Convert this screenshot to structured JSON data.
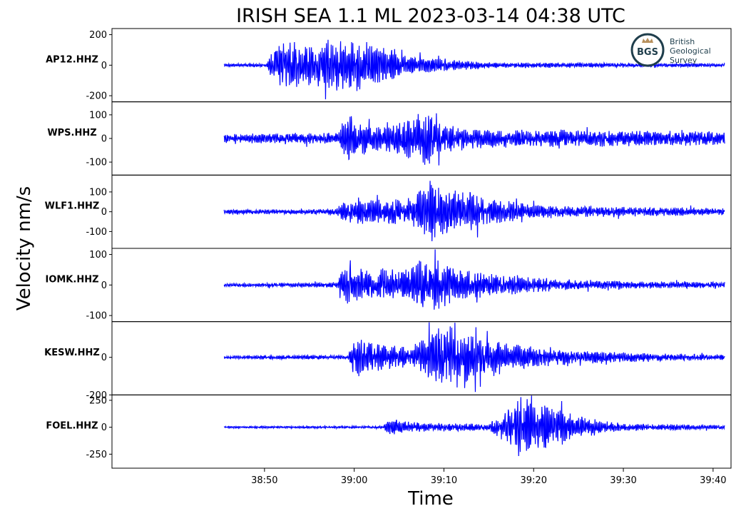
{
  "chart_data": {
    "type": "line",
    "title": "IRISH SEA 1.1 ML   2023-03-14 04:38 UTC",
    "xlabel": "Time",
    "ylabel": "Velocity nm/s",
    "x_tick_labels": [
      "38:50",
      "39:00",
      "39:10",
      "39:20",
      "39:30",
      "39:40"
    ],
    "x_tick_seconds": [
      50,
      60,
      70,
      80,
      90,
      100
    ],
    "xlim_seconds": [
      33.0,
      102.0
    ],
    "trace_start_seconds": 45.5,
    "trace_end_seconds": 107.0,
    "line_color": "#0000ff",
    "series": [
      {
        "name": "AP12.HHZ",
        "ylim": [
          -240,
          240
        ],
        "yticks": [
          200,
          0,
          -200
        ],
        "ytick_labels": [
          "200",
          "0",
          "-200"
        ],
        "onsets_seconds": [
          50.5,
          56.5
        ],
        "envelope": [
          [
            45.5,
            10
          ],
          [
            50.2,
            12
          ],
          [
            50.8,
            90
          ],
          [
            52,
            180
          ],
          [
            54,
            150
          ],
          [
            57,
            170
          ],
          [
            60,
            180
          ],
          [
            63,
            130
          ],
          [
            66,
            60
          ],
          [
            75,
            20
          ],
          [
            90,
            14
          ],
          [
            107,
            12
          ]
        ]
      },
      {
        "name": "WPS.HHZ",
        "ylim": [
          -155,
          155
        ],
        "yticks": [
          100,
          0,
          -100
        ],
        "ytick_labels": [
          "100",
          "0",
          "-100"
        ],
        "onsets_seconds": [
          58.5,
          66.5
        ],
        "envelope": [
          [
            45.5,
            20
          ],
          [
            58.2,
            25
          ],
          [
            59.0,
            125
          ],
          [
            61,
            70
          ],
          [
            63,
            50
          ],
          [
            66.5,
            90
          ],
          [
            68,
            130
          ],
          [
            70,
            60
          ],
          [
            75,
            40
          ],
          [
            107,
            28
          ]
        ]
      },
      {
        "name": "WLF1.HHZ",
        "ylim": [
          -185,
          185
        ],
        "yticks": [
          100,
          0,
          -100
        ],
        "ytick_labels": [
          "100",
          "0",
          "-100"
        ],
        "onsets_seconds": [
          58.3,
          67.0
        ],
        "envelope": [
          [
            45.5,
            12
          ],
          [
            58.0,
            14
          ],
          [
            58.8,
            60
          ],
          [
            63,
            65
          ],
          [
            66.5,
            80
          ],
          [
            68,
            170
          ],
          [
            72,
            110
          ],
          [
            76,
            60
          ],
          [
            82,
            30
          ],
          [
            107,
            15
          ]
        ]
      },
      {
        "name": "IOMK.HHZ",
        "ylim": [
          -120,
          120
        ],
        "yticks": [
          100,
          0,
          -100
        ],
        "ytick_labels": [
          "100",
          "0",
          "-100"
        ],
        "onsets_seconds": [
          58.0,
          66.5
        ],
        "envelope": [
          [
            45.5,
            6
          ],
          [
            58.0,
            8
          ],
          [
            58.6,
            70
          ],
          [
            62,
            50
          ],
          [
            66,
            55
          ],
          [
            68,
            100
          ],
          [
            71,
            60
          ],
          [
            76,
            35
          ],
          [
            85,
            15
          ],
          [
            107,
            8
          ]
        ]
      },
      {
        "name": "KESW.HHZ",
        "ylim": [
          -200,
          190
        ],
        "yticks": [
          0,
          -200
        ],
        "ytick_labels": [
          "0",
          "-200"
        ],
        "onsets_seconds": [
          59.5,
          69.5
        ],
        "envelope": [
          [
            45.5,
            10
          ],
          [
            59.3,
            12
          ],
          [
            60.0,
            110
          ],
          [
            63,
            70
          ],
          [
            66,
            55
          ],
          [
            70,
            180
          ],
          [
            74,
            120
          ],
          [
            78,
            70
          ],
          [
            84,
            40
          ],
          [
            95,
            20
          ],
          [
            107,
            10
          ]
        ]
      },
      {
        "name": "FOEL.HHZ",
        "ylim": [
          -380,
          300
        ],
        "yticks": [
          250,
          0,
          -250
        ],
        "ytick_labels": [
          "250",
          "0",
          "-250"
        ],
        "onsets_seconds": [
          63.5,
          76.5
        ],
        "envelope": [
          [
            45.5,
            10
          ],
          [
            63.2,
            12
          ],
          [
            64.0,
            80
          ],
          [
            66,
            55
          ],
          [
            70,
            40
          ],
          [
            75,
            30
          ],
          [
            77,
            150
          ],
          [
            78.5,
            300
          ],
          [
            82,
            200
          ],
          [
            86,
            90
          ],
          [
            90,
            35
          ],
          [
            107,
            18
          ]
        ]
      }
    ],
    "grid": false
  },
  "logo": {
    "mark": "BGS",
    "lines": [
      "British",
      "Geological",
      "Survey"
    ]
  }
}
